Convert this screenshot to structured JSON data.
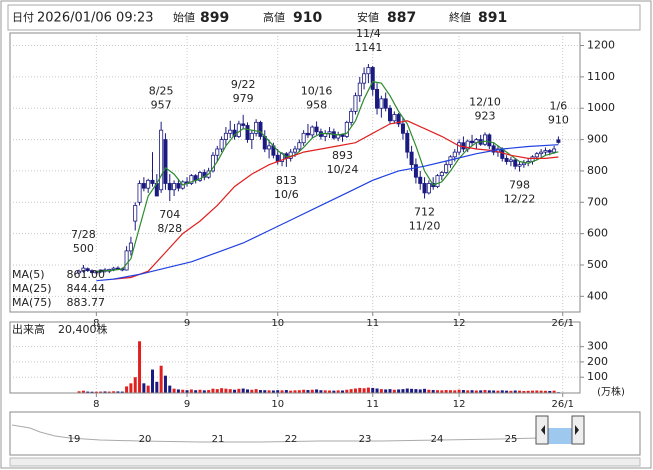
{
  "header": {
    "date_label": "日付",
    "datetime": "2026/01/06 09:23",
    "fields": [
      {
        "label": "始値",
        "value": 899,
        "color": "#000000"
      },
      {
        "label": "高値",
        "value": 910,
        "color": "#e00000"
      },
      {
        "label": "安値",
        "value": 887,
        "color": "#008000"
      },
      {
        "label": "終値",
        "value": 891,
        "color": "#000000"
      }
    ]
  },
  "chart_data": [
    {
      "type": "candlestick",
      "up_color": "#ffffff",
      "down_color": "#1a1a80",
      "edge_color": "#1a1a80",
      "grid": true,
      "xlim": [
        0,
        132
      ],
      "ylim": [
        350,
        1240
      ],
      "yticks": [
        400,
        500,
        600,
        700,
        800,
        900,
        1000,
        1100,
        1200
      ],
      "xticks": [
        {
          "value": 20,
          "label": "8"
        },
        {
          "value": 41,
          "label": "9"
        },
        {
          "value": 62,
          "label": "10"
        },
        {
          "value": 84,
          "label": "11"
        },
        {
          "value": 104,
          "label": "12"
        },
        {
          "value": 128,
          "label": "26/1"
        }
      ],
      "x": [
        16,
        17,
        18,
        19,
        20,
        21,
        22,
        23,
        24,
        25,
        26,
        27,
        28,
        29,
        30,
        31,
        32,
        33,
        34,
        35,
        36,
        37,
        38,
        39,
        40,
        41,
        42,
        43,
        44,
        45,
        46,
        47,
        48,
        49,
        50,
        51,
        52,
        53,
        54,
        55,
        56,
        57,
        58,
        59,
        60,
        61,
        62,
        63,
        64,
        65,
        66,
        67,
        68,
        69,
        70,
        71,
        72,
        73,
        74,
        75,
        76,
        77,
        78,
        79,
        80,
        81,
        82,
        83,
        84,
        85,
        86,
        87,
        88,
        89,
        90,
        91,
        92,
        93,
        94,
        95,
        96,
        97,
        98,
        99,
        100,
        101,
        102,
        103,
        104,
        105,
        106,
        107,
        108,
        109,
        110,
        111,
        112,
        113,
        114,
        115,
        116,
        117,
        118,
        119,
        120,
        121,
        122,
        123,
        124,
        125,
        126,
        127
      ],
      "open": [
        475,
        480,
        488,
        482,
        476,
        478,
        484,
        480,
        486,
        490,
        488,
        484,
        545,
        640,
        700,
        760,
        745,
        770,
        760,
        740,
        900,
        760,
        740,
        760,
        745,
        765,
        760,
        785,
        770,
        795,
        780,
        800,
        850,
        870,
        900,
        920,
        930,
        910,
        950,
        945,
        900,
        920,
        955,
        910,
        870,
        880,
        850,
        830,
        855,
        840,
        860,
        870,
        890,
        920,
        915,
        940,
        925,
        910,
        920,
        925,
        905,
        915,
        910,
        955,
        990,
        1040,
        1080,
        1110,
        1130,
        1060,
        1000,
        1030,
        1000,
        960,
        980,
        950,
        920,
        860,
        820,
        780,
        760,
        730,
        760,
        750,
        785,
        795,
        820,
        845,
        860,
        890,
        870,
        895,
        890,
        900,
        885,
        915,
        880,
        860,
        870,
        840,
        830,
        835,
        815,
        820,
        825,
        830,
        845,
        855,
        860,
        865,
        860,
        899
      ],
      "high": [
        485,
        500,
        492,
        486,
        482,
        486,
        490,
        488,
        494,
        496,
        492,
        560,
        590,
        700,
        770,
        780,
        775,
        860,
        790,
        957,
        920,
        790,
        770,
        775,
        770,
        780,
        790,
        790,
        800,
        805,
        810,
        860,
        880,
        910,
        940,
        960,
        950,
        960,
        979,
        955,
        930,
        965,
        960,
        930,
        900,
        890,
        870,
        860,
        860,
        870,
        880,
        900,
        930,
        950,
        945,
        958,
        935,
        930,
        940,
        935,
        925,
        920,
        960,
        1000,
        1050,
        1100,
        1130,
        1141,
        1135,
        1080,
        1040,
        1050,
        1010,
        990,
        985,
        970,
        930,
        880,
        840,
        800,
        780,
        770,
        780,
        790,
        800,
        830,
        850,
        870,
        900,
        910,
        900,
        915,
        905,
        915,
        923,
        920,
        890,
        880,
        875,
        850,
        845,
        840,
        830,
        835,
        840,
        850,
        860,
        870,
        875,
        870,
        880,
        910
      ],
      "low": [
        470,
        475,
        478,
        472,
        470,
        474,
        476,
        474,
        480,
        484,
        480,
        482,
        530,
        610,
        690,
        735,
        730,
        750,
        720,
        730,
        740,
        704,
        720,
        735,
        740,
        750,
        755,
        760,
        765,
        770,
        775,
        795,
        830,
        860,
        880,
        905,
        900,
        905,
        935,
        890,
        870,
        910,
        900,
        860,
        840,
        840,
        820,
        815,
        813,
        830,
        845,
        860,
        880,
        905,
        905,
        915,
        900,
        895,
        905,
        900,
        895,
        893,
        905,
        945,
        980,
        1020,
        1060,
        1080,
        1040,
        980,
        970,
        990,
        950,
        950,
        940,
        900,
        840,
        800,
        760,
        740,
        712,
        725,
        740,
        745,
        770,
        790,
        810,
        830,
        850,
        860,
        860,
        880,
        870,
        880,
        880,
        870,
        850,
        845,
        830,
        820,
        815,
        805,
        798,
        810,
        815,
        820,
        835,
        845,
        850,
        850,
        855,
        887
      ],
      "close": [
        480,
        490,
        482,
        476,
        478,
        484,
        480,
        486,
        490,
        488,
        484,
        545,
        570,
        690,
        760,
        745,
        770,
        760,
        720,
        930,
        760,
        740,
        760,
        745,
        765,
        760,
        785,
        770,
        795,
        780,
        800,
        850,
        870,
        900,
        920,
        930,
        910,
        950,
        945,
        900,
        920,
        955,
        910,
        870,
        880,
        850,
        830,
        855,
        840,
        860,
        870,
        890,
        920,
        915,
        940,
        925,
        910,
        920,
        925,
        905,
        915,
        910,
        955,
        990,
        1040,
        1080,
        1110,
        1130,
        1060,
        1000,
        1030,
        1000,
        960,
        980,
        950,
        920,
        860,
        820,
        780,
        760,
        730,
        760,
        750,
        785,
        795,
        820,
        845,
        860,
        890,
        870,
        895,
        890,
        900,
        885,
        915,
        880,
        860,
        870,
        840,
        830,
        835,
        815,
        820,
        825,
        830,
        845,
        855,
        860,
        865,
        860,
        870,
        891
      ],
      "series": [
        {
          "name": "MA(5)",
          "color": "#2e8b2e",
          "readout": "861.00",
          "x": [
            20,
            23,
            26,
            28,
            30,
            32,
            34,
            36,
            38,
            40,
            42,
            44,
            46,
            48,
            50,
            52,
            54,
            56,
            58,
            60,
            62,
            64,
            66,
            68,
            70,
            72,
            74,
            76,
            78,
            80,
            82,
            84,
            86,
            88,
            90,
            92,
            94,
            96,
            98,
            100,
            102,
            104,
            106,
            108,
            110,
            112,
            114,
            116,
            118,
            120,
            122,
            124,
            127
          ],
          "values": [
            480,
            482,
            487,
            520,
            620,
            720,
            760,
            810,
            790,
            755,
            765,
            775,
            790,
            830,
            880,
            915,
            935,
            930,
            925,
            895,
            865,
            845,
            850,
            875,
            905,
            920,
            918,
            915,
            920,
            960,
            1030,
            1085,
            1080,
            1040,
            990,
            950,
            880,
            800,
            755,
            765,
            800,
            840,
            870,
            890,
            895,
            890,
            870,
            850,
            830,
            825,
            835,
            850,
            861
          ]
        },
        {
          "name": "MA(25)",
          "color": "#e02020",
          "readout": "844.44",
          "x": [
            24,
            28,
            32,
            36,
            40,
            44,
            48,
            52,
            56,
            60,
            64,
            68,
            72,
            76,
            80,
            84,
            88,
            92,
            96,
            100,
            104,
            108,
            112,
            116,
            120,
            124,
            127
          ],
          "values": [
            455,
            460,
            480,
            540,
            600,
            640,
            690,
            750,
            790,
            820,
            840,
            860,
            870,
            880,
            890,
            920,
            950,
            960,
            935,
            910,
            880,
            870,
            865,
            850,
            840,
            840,
            844.44
          ]
        },
        {
          "name": "MA(75)",
          "color": "#2040e0",
          "readout": "883.77",
          "x": [
            20,
            24,
            30,
            36,
            42,
            48,
            54,
            60,
            66,
            72,
            78,
            84,
            90,
            96,
            102,
            108,
            114,
            120,
            127
          ],
          "values": [
            450,
            455,
            470,
            490,
            510,
            540,
            570,
            610,
            650,
            690,
            730,
            770,
            800,
            815,
            835,
            855,
            870,
            878,
            883.77
          ]
        }
      ],
      "annotations": [
        {
          "date": "7/28",
          "price": 500,
          "x": 17,
          "pos": "above"
        },
        {
          "date": "8/25",
          "price": 957,
          "x": 35,
          "pos": "above"
        },
        {
          "date": "8/28",
          "price": 704,
          "x": 37,
          "pos": "below"
        },
        {
          "date": "9/22",
          "price": 979,
          "x": 54,
          "pos": "above"
        },
        {
          "date": "10/6",
          "price": 813,
          "x": 64,
          "pos": "below"
        },
        {
          "date": "10/16",
          "price": 958,
          "x": 71,
          "pos": "above"
        },
        {
          "date": "10/24",
          "price": 893,
          "x": 77,
          "pos": "below"
        },
        {
          "date": "11/4",
          "price": 1141,
          "x": 83,
          "pos": "above"
        },
        {
          "date": "11/20",
          "price": 712,
          "x": 96,
          "pos": "below"
        },
        {
          "date": "12/10",
          "price": 923,
          "x": 110,
          "pos": "above"
        },
        {
          "date": "12/22",
          "price": 798,
          "x": 118,
          "pos": "below"
        },
        {
          "date": "1/6",
          "price": 910,
          "x": 127,
          "pos": "above"
        }
      ]
    },
    {
      "type": "bar",
      "title": "出来高",
      "subtitle": "20,400株",
      "unit": "(万株)",
      "up_color": "#e02020",
      "down_color": "#1a1a80",
      "grid": true,
      "xlim": [
        0,
        132
      ],
      "ylim": [
        0,
        350
      ],
      "yticks": [
        100,
        200,
        300
      ],
      "xticks": [
        {
          "value": 20,
          "label": "8"
        },
        {
          "value": 41,
          "label": "9"
        },
        {
          "value": 62,
          "label": "10"
        },
        {
          "value": 84,
          "label": "11"
        },
        {
          "value": 104,
          "label": "12"
        },
        {
          "value": 128,
          "label": "26/1"
        }
      ],
      "x": [
        16,
        17,
        18,
        19,
        20,
        21,
        22,
        23,
        24,
        25,
        26,
        27,
        28,
        29,
        30,
        31,
        32,
        33,
        34,
        35,
        36,
        37,
        38,
        39,
        40,
        41,
        42,
        43,
        44,
        45,
        46,
        47,
        48,
        49,
        50,
        51,
        52,
        53,
        54,
        55,
        56,
        57,
        58,
        59,
        60,
        61,
        62,
        63,
        64,
        65,
        66,
        67,
        68,
        69,
        70,
        71,
        72,
        73,
        74,
        75,
        76,
        77,
        78,
        79,
        80,
        81,
        82,
        83,
        84,
        85,
        86,
        87,
        88,
        89,
        90,
        91,
        92,
        93,
        94,
        95,
        96,
        97,
        98,
        99,
        100,
        101,
        102,
        103,
        104,
        105,
        106,
        107,
        108,
        109,
        110,
        111,
        112,
        113,
        114,
        115,
        116,
        117,
        118,
        119,
        120,
        121,
        122,
        123,
        124,
        125,
        126,
        127
      ],
      "values": [
        8,
        12,
        6,
        5,
        5,
        6,
        7,
        6,
        8,
        7,
        6,
        40,
        60,
        100,
        335,
        60,
        45,
        150,
        70,
        175,
        110,
        45,
        25,
        20,
        18,
        15,
        20,
        15,
        18,
        14,
        16,
        25,
        22,
        28,
        25,
        22,
        18,
        24,
        26,
        20,
        18,
        22,
        16,
        15,
        14,
        13,
        15,
        14,
        16,
        12,
        14,
        15,
        18,
        16,
        18,
        20,
        15,
        14,
        13,
        12,
        14,
        13,
        18,
        22,
        26,
        30,
        28,
        32,
        30,
        26,
        22,
        20,
        22,
        18,
        20,
        22,
        26,
        24,
        22,
        20,
        24,
        18,
        16,
        15,
        14,
        16,
        15,
        14,
        18,
        16,
        14,
        15,
        13,
        14,
        16,
        14,
        13,
        12,
        14,
        12,
        11,
        13,
        12,
        10,
        11,
        12,
        13,
        12,
        11,
        10,
        12,
        2.04
      ]
    }
  ],
  "navigator": {
    "labels": [
      "19",
      "20",
      "21",
      "22",
      "23",
      "24",
      "25"
    ]
  }
}
